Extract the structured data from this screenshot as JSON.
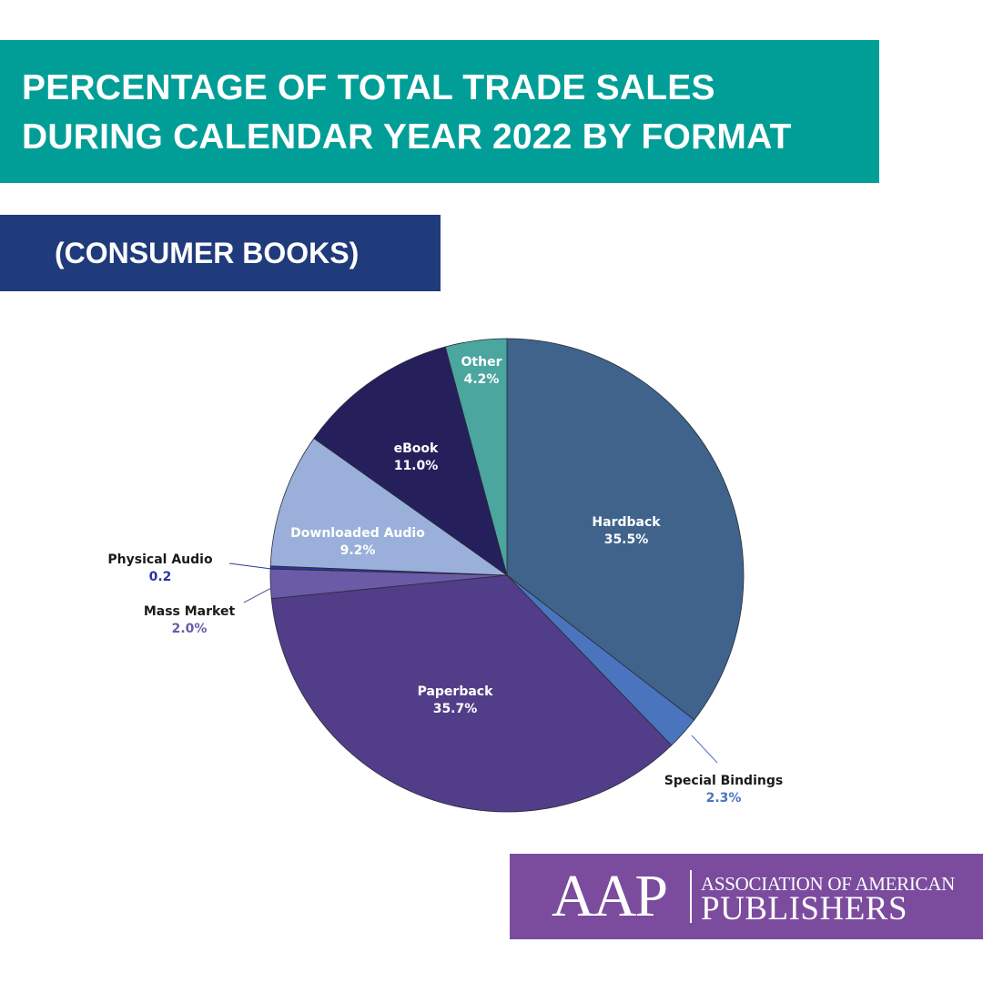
{
  "header": {
    "title_line_1": "PERCENTAGE OF TOTAL TRADE SALES",
    "title_line_2": "DURING CALENDAR YEAR 2022 BY FORMAT",
    "subtitle": "(CONSUMER BOOKS)"
  },
  "logo": {
    "abbreviation": "AAP",
    "name_line_1": "ASSOCIATION OF AMERICAN",
    "name_line_2": "PUBLISHERS"
  },
  "colors": {
    "title_banner": "#009e97",
    "subtitle_banner": "#203b7c",
    "logo_block": "#7b4b9e"
  },
  "chart_data": {
    "type": "pie",
    "start": "12 o'clock",
    "direction": "clockwise",
    "slices": [
      {
        "label": "Hardback",
        "value": 35.5,
        "display": "35.5%",
        "color": "#3f638b",
        "label_color": "#ffffff",
        "value_color": "#ffffff"
      },
      {
        "label": "Special Bindings",
        "value": 2.3,
        "display": "2.3%",
        "color": "#4a74bd",
        "label_color": "#1a1a1a",
        "value_color": "#4a74bd"
      },
      {
        "label": "Paperback",
        "value": 35.7,
        "display": "35.7%",
        "color": "#523d88",
        "label_color": "#ffffff",
        "value_color": "#ffffff"
      },
      {
        "label": "Mass Market",
        "value": 2.0,
        "display": "2.0%",
        "color": "#6b5aa6",
        "label_color": "#1a1a1a",
        "value_color": "#6b5aa6"
      },
      {
        "label": "Physical Audio",
        "value": 0.2,
        "display": "0.2",
        "color": "#2a35a0",
        "label_color": "#1a1a1a",
        "value_color": "#2a35a0"
      },
      {
        "label": "Downloaded Audio",
        "value": 9.2,
        "display": "9.2%",
        "color": "#9ab0da",
        "label_color": "#ffffff",
        "value_color": "#ffffff"
      },
      {
        "label": "eBook",
        "value": 11.0,
        "display": "11.0%",
        "color": "#25205c",
        "label_color": "#ffffff",
        "value_color": "#ffffff"
      },
      {
        "label": "Other",
        "value": 4.2,
        "display": "4.2%",
        "color": "#4aa69f",
        "label_color": "#ffffff",
        "value_color": "#ffffff"
      }
    ]
  }
}
